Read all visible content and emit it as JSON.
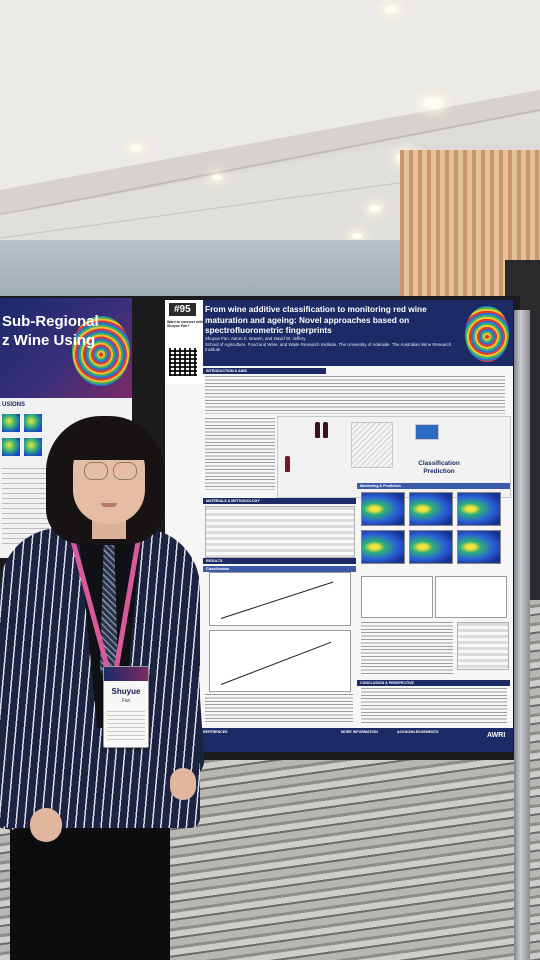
{
  "left_poster": {
    "title_line1": "Sub-Regional",
    "title_line2": "z Wine Using",
    "section": "USIONS"
  },
  "poster": {
    "number": "#95",
    "connect_text": "Want to connect with Shuyue Fan?",
    "title": "From wine additive classification to monitoring red wine maturation and ageing: Novel approaches based on spectrofluorometric fingerprints",
    "authors": "Shuyue Fan, Aaron K. Bowen, and David W. Jeffery",
    "affiliation": "School of Agriculture, Food and Wine, and Waite Research Institute, The University of Adelaide. The Australian Wine Research Institute",
    "sections": {
      "intro": "INTRODUCTION & AIMS",
      "methods": "MATERIALS & METHODOLOGY",
      "results": "RESULTS",
      "classification": "Classification",
      "monitoring": "Monitoring & Prediction",
      "conclusion": "CONCLUSION & PERSPECTIVE",
      "references": "REFERENCES",
      "more_info": "MORE INFORMATION",
      "acknowledgements": "ACKNOWLEDGEMENTS"
    },
    "flow_label": "Classification Prediction",
    "logo": "AWRI"
  },
  "badge": {
    "name": "Shuyue",
    "surname": "Fan"
  }
}
